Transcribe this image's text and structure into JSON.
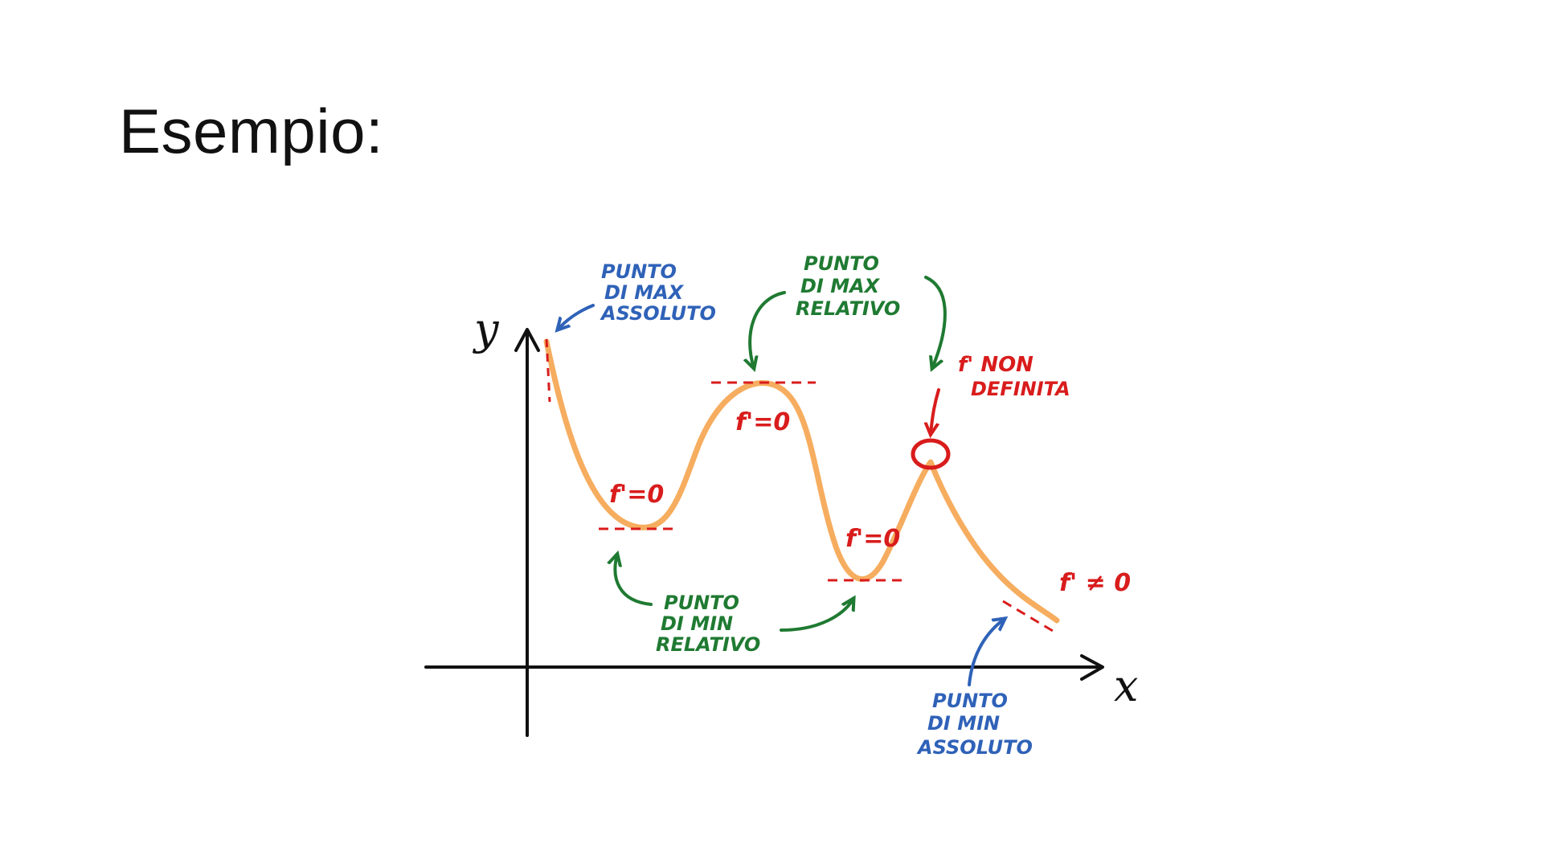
{
  "slide": {
    "title": "Esempio:"
  },
  "axes": {
    "x_label": "x",
    "y_label": "y"
  },
  "annotations": {
    "max_assoluto": [
      "PUNTO",
      "DI MAX",
      "ASSOLUTO"
    ],
    "max_relativo": [
      "PUNTO",
      "DI MAX",
      "RELATIVO"
    ],
    "min_relativo": [
      "PUNTO",
      "DI MIN",
      "RELATIVO"
    ],
    "min_assoluto": [
      "PUNTO",
      "DI MIN",
      "ASSOLUTO"
    ],
    "non_definita": [
      "f' NON",
      "DEFINITA"
    ],
    "fprime_zero_1": "f'=0",
    "fprime_zero_2": "f'=0",
    "fprime_zero_3": "f'=0",
    "fprime_nonzero": "f' ≠ 0"
  },
  "colors": {
    "curve": "#f6ad5f",
    "axes": "#111111",
    "blue_label": "#2f62b8",
    "green_label": "#1f7a32",
    "red_label": "#d91c1c"
  }
}
